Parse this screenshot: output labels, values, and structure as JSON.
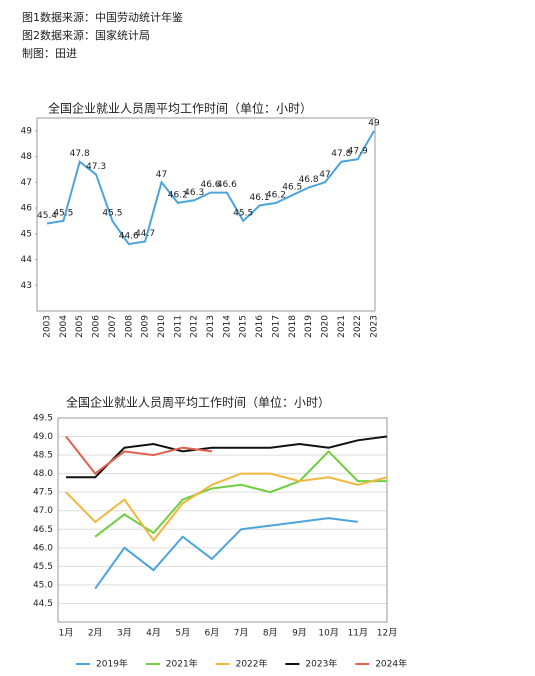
{
  "header": {
    "lines": [
      "图1数据来源：中国劳动统计年鉴",
      "图2数据来源：国家统计局",
      "制图：田进"
    ]
  },
  "chart_data": [
    {
      "type": "line",
      "title": "全国企业就业人员周平均工作时间（单位：小时）",
      "categories": [
        "2003",
        "2004",
        "2005",
        "2006",
        "2007",
        "2008",
        "2009",
        "2010",
        "2011",
        "2012",
        "2013",
        "2014",
        "2015",
        "2016",
        "2017",
        "2018",
        "2019",
        "2020",
        "2021",
        "2022",
        "2023"
      ],
      "values": [
        45.4,
        45.5,
        47.8,
        47.3,
        45.5,
        44.6,
        44.7,
        47,
        46.2,
        46.3,
        46.6,
        46.6,
        45.5,
        46.1,
        46.2,
        46.5,
        46.8,
        47,
        47.8,
        47.9,
        49
      ],
      "color": "#4ba4dc",
      "ylim": [
        42,
        49.5
      ],
      "yticks": [
        43,
        44,
        45,
        46,
        47,
        48,
        49
      ],
      "grid": false
    },
    {
      "type": "line",
      "title": "全国企业就业人员周平均工作时间（单位：小时）",
      "categories": [
        "1月",
        "2月",
        "3月",
        "4月",
        "5月",
        "6月",
        "7月",
        "8月",
        "9月",
        "10月",
        "11月",
        "12月"
      ],
      "series": [
        {
          "name": "2019年",
          "color": "#4ba4dc",
          "values": [
            null,
            44.9,
            46.0,
            45.4,
            46.3,
            45.7,
            46.5,
            46.6,
            46.7,
            46.8,
            46.7,
            null
          ]
        },
        {
          "name": "2021年",
          "color": "#6fcf3e",
          "values": [
            null,
            46.3,
            46.9,
            46.4,
            47.3,
            47.6,
            47.7,
            47.5,
            47.8,
            48.6,
            47.8,
            47.8
          ]
        },
        {
          "name": "2022年",
          "color": "#f1b73e",
          "values": [
            47.5,
            46.7,
            47.3,
            46.2,
            47.2,
            47.7,
            48.0,
            48.0,
            47.8,
            47.9,
            47.7,
            47.9
          ]
        },
        {
          "name": "2023年",
          "color": "#111111",
          "values": [
            47.9,
            47.9,
            48.7,
            48.8,
            48.6,
            48.7,
            48.7,
            48.7,
            48.8,
            48.7,
            48.9,
            49.0
          ]
        },
        {
          "name": "2024年",
          "color": "#e2604f",
          "values": [
            49.0,
            48.0,
            48.6,
            48.5,
            48.7,
            48.6,
            null,
            null,
            null,
            null,
            null,
            null
          ]
        }
      ],
      "ylim": [
        44,
        49.5
      ],
      "yticks": [
        {
          "value": 44.5,
          "label": "44.5"
        },
        {
          "value": 45,
          "label": "45.0"
        },
        {
          "value": 45.5,
          "label": "45.5"
        },
        {
          "value": 46,
          "label": "46.0"
        },
        {
          "value": 46.5,
          "label": "46.5"
        },
        {
          "value": 47,
          "label": "47.0"
        },
        {
          "value": 47.5,
          "label": "47.5"
        },
        {
          "value": 48,
          "label": "48.0"
        },
        {
          "value": 48.5,
          "label": "48.5"
        },
        {
          "value": 49,
          "label": "49.0"
        },
        {
          "value": 49.5,
          "label": "49.5"
        }
      ],
      "grid": true,
      "legend": "bottom"
    }
  ]
}
